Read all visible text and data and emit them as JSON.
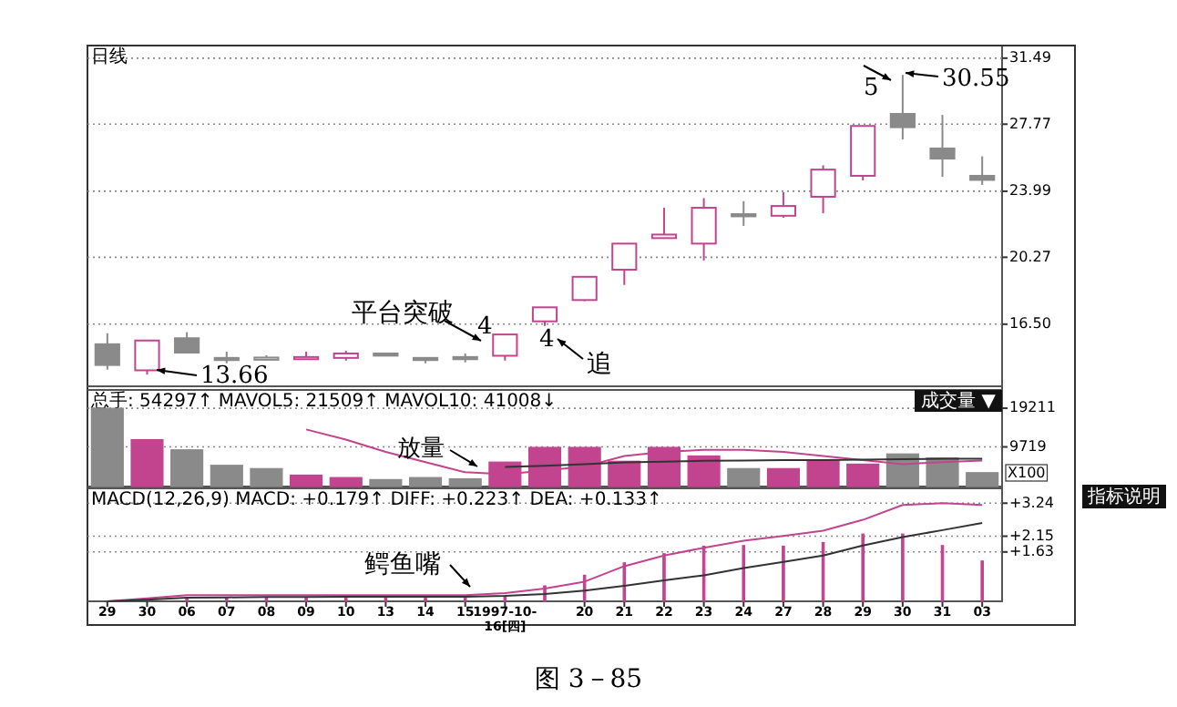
{
  "chart_data": [
    {
      "type": "candlestick",
      "title": "日线",
      "ohlc": [
        [
          15.37,
          15.99,
          13.94,
          14.2
        ],
        [
          13.9,
          15.6,
          13.66,
          15.58
        ],
        [
          15.71,
          16.05,
          14.9,
          14.9
        ],
        [
          14.6,
          14.95,
          14.3,
          14.55
        ],
        [
          14.6,
          14.75,
          14.45,
          14.62
        ],
        [
          14.55,
          14.95,
          14.5,
          14.65
        ],
        [
          14.6,
          15.0,
          14.45,
          14.85
        ],
        [
          14.85,
          14.9,
          14.75,
          14.75
        ],
        [
          14.6,
          14.6,
          14.3,
          14.5
        ],
        [
          14.65,
          14.85,
          14.35,
          14.6
        ],
        [
          14.72,
          15.92,
          14.45,
          15.92
        ],
        [
          16.66,
          17.45,
          16.4,
          17.45
        ],
        [
          17.86,
          19.17,
          17.8,
          19.17
        ],
        [
          19.57,
          21.04,
          18.71,
          21.04
        ],
        [
          21.35,
          23.06,
          21.35,
          21.55
        ],
        [
          21.04,
          23.6,
          20.09,
          23.06
        ],
        [
          22.7,
          23.43,
          22.04,
          22.6
        ],
        [
          22.61,
          23.94,
          22.5,
          23.16
        ],
        [
          23.68,
          25.45,
          22.75,
          25.21
        ],
        [
          24.86,
          27.67,
          24.6,
          27.67
        ],
        [
          28.35,
          30.55,
          26.91,
          27.6
        ],
        [
          26.4,
          28.29,
          24.8,
          25.83
        ],
        [
          24.86,
          25.96,
          24.35,
          24.63
        ]
      ],
      "colors": [
        "#8a8a8a",
        "#c2448f",
        "#8a8a8a",
        "#8a8a8a",
        "#8a8a8a",
        "#c2448f",
        "#c2448f",
        "#8a8a8a",
        "#8a8a8a",
        "#8a8a8a",
        "#c2448f",
        "#c2448f",
        "#c2448f",
        "#c2448f",
        "#c2448f",
        "#c2448f",
        "#8a8a8a",
        "#c2448f",
        "#c2448f",
        "#c2448f",
        "#8a8a8a",
        "#8a8a8a",
        "#8a8a8a"
      ],
      "ylim": [
        13.0,
        32.2
      ],
      "yticks": [
        {
          "value": 16.5,
          "label": "16.50"
        },
        {
          "value": 20.27,
          "label": "20.27"
        },
        {
          "value": 23.99,
          "label": "23.99"
        },
        {
          "value": 27.77,
          "label": "27.77"
        },
        {
          "value": 31.49,
          "label": "31.49"
        }
      ],
      "grid": "y",
      "tick_labels": "y",
      "annotations": [
        "平台突破",
        "4",
        "4",
        "追",
        "13.66",
        "5",
        "30.55"
      ]
    },
    {
      "type": "bar",
      "title": "总手: 54297↑ MAVOL5: 21509↑ MAVOL10: 41008↓",
      "series": [
        {
          "type": "bar",
          "colors": [
            "#8a8a8a",
            "#c2448f",
            "#8a8a8a",
            "#8a8a8a",
            "#8a8a8a",
            "#c2448f",
            "#c2448f",
            "#8a8a8a",
            "#8a8a8a",
            "#8a8a8a",
            "#c2448f",
            "#c2448f",
            "#c2448f",
            "#c2448f",
            "#c2448f",
            "#c2448f",
            "#8a8a8a",
            "#c2448f",
            "#c2448f",
            "#c2448f",
            "#8a8a8a",
            "#8a8a8a",
            "#8a8a8a"
          ],
          "values": [
            19200,
            11500,
            9000,
            5200,
            4400,
            2800,
            2200,
            1700,
            2200,
            1900,
            6000,
            9600,
            9600,
            6200,
            9600,
            7500,
            4400,
            4400,
            6400,
            5500,
            8000,
            7000,
            3400
          ]
        },
        {
          "type": "line",
          "color": "#c2448f",
          "values": [
            null,
            null,
            null,
            null,
            null,
            14000,
            11500,
            8500,
            6000,
            3500,
            3000,
            3900,
            4900,
            7500,
            8500,
            9000,
            9000,
            8500,
            7500,
            6500,
            5500,
            6000,
            6400
          ]
        },
        {
          "type": "line",
          "color": "#333333",
          "values": [
            null,
            null,
            null,
            null,
            null,
            null,
            null,
            null,
            null,
            null,
            4800,
            5100,
            5500,
            5900,
            6100,
            6300,
            6400,
            6500,
            6500,
            6600,
            6700,
            6800,
            6800
          ]
        }
      ],
      "ylim": [
        0,
        23700
      ],
      "yticks": [
        9719,
        19211
      ],
      "grid": "y",
      "tick_labels": "y",
      "annotations": [
        "成交量 ▼",
        "X100",
        "放量"
      ]
    },
    {
      "type": "line",
      "title": "MACD(12,26,9) MACD: +0.179↑ DIFF: +0.223↑ DEA: +0.133↑",
      "categories": [
        "29",
        "30",
        "06",
        "07",
        "08",
        "09",
        "10",
        "13",
        "14",
        "15",
        "1997-10-16[四]",
        null,
        "20",
        "21",
        "22",
        "23",
        "24",
        "27",
        "28",
        "29",
        "30",
        "31",
        "03"
      ],
      "series": [
        {
          "type": "bar",
          "color": "#c2448f",
          "values": [
            null,
            null,
            0.1,
            0.1,
            0.1,
            0.1,
            0.1,
            0.1,
            0.1,
            0.1,
            0.14,
            0.51,
            0.86,
            1.27,
            1.57,
            1.82,
            1.84,
            1.82,
            1.94,
            2.22,
            2.22,
            1.84,
            1.33
          ]
        },
        {
          "type": "line",
          "color": "#c2448f",
          "values": [
            0.0,
            0.1,
            0.2,
            0.2,
            0.2,
            0.2,
            0.2,
            0.2,
            0.2,
            0.2,
            0.27,
            0.42,
            0.65,
            1.16,
            1.51,
            1.77,
            2.0,
            2.16,
            2.33,
            2.69,
            3.18,
            3.24,
            3.18
          ]
        },
        {
          "type": "line",
          "color": "#333333",
          "values": [
            0.0,
            0.05,
            0.12,
            0.13,
            0.14,
            0.14,
            0.15,
            0.15,
            0.15,
            0.15,
            0.18,
            0.24,
            0.35,
            0.51,
            0.69,
            0.86,
            1.1,
            1.3,
            1.51,
            1.84,
            2.12,
            2.35,
            2.59
          ]
        }
      ],
      "ylim": [
        0,
        3.73
      ],
      "yticks": [
        {
          "value": 1.63,
          "label": "+1.63"
        },
        {
          "value": 2.15,
          "label": "+2.15"
        },
        {
          "value": 3.24,
          "label": "+3.24"
        }
      ],
      "grid": "y",
      "annotations": [
        "指标说明",
        "鳄鱼嘴",
        "图 3－85"
      ]
    }
  ]
}
